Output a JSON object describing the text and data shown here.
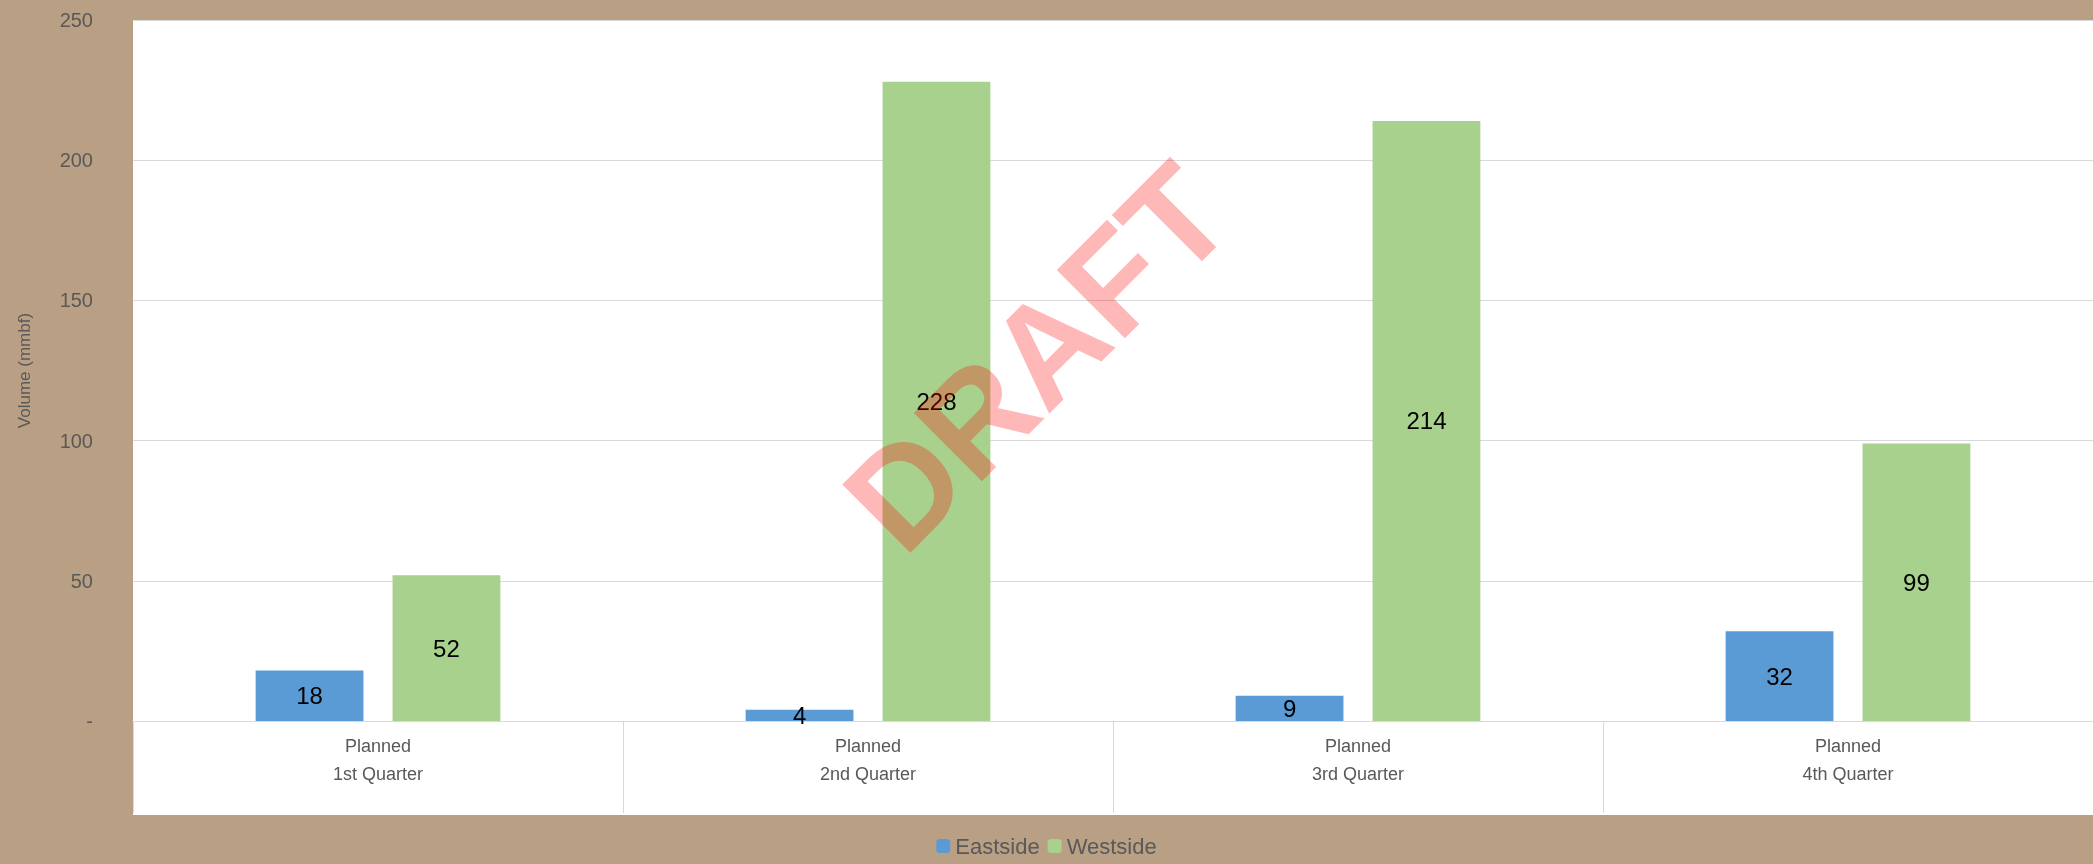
{
  "chart_data": {
    "type": "bar",
    "ylabel": "Volume (mmbf)",
    "categories": [
      "Planned\n\n1st Quarter",
      "Planned\n\n2nd Quarter",
      "Planned\n\n3rd Quarter",
      "Planned\n\n4th Quarter"
    ],
    "series": [
      {
        "name": "Eastside",
        "color": "#5b9bd5",
        "values": [
          18,
          4,
          9,
          32
        ]
      },
      {
        "name": "Westside",
        "color": "#a9d18e",
        "values": [
          52,
          228,
          214,
          99
        ]
      }
    ],
    "ylim": [
      0,
      250
    ],
    "yticks": [
      {
        "value": 0,
        "label": "-"
      },
      50,
      100,
      150,
      200,
      250
    ],
    "grid": "y",
    "legend": "bottom",
    "data_labels": true,
    "annotations": [
      "DRAFT"
    ]
  }
}
